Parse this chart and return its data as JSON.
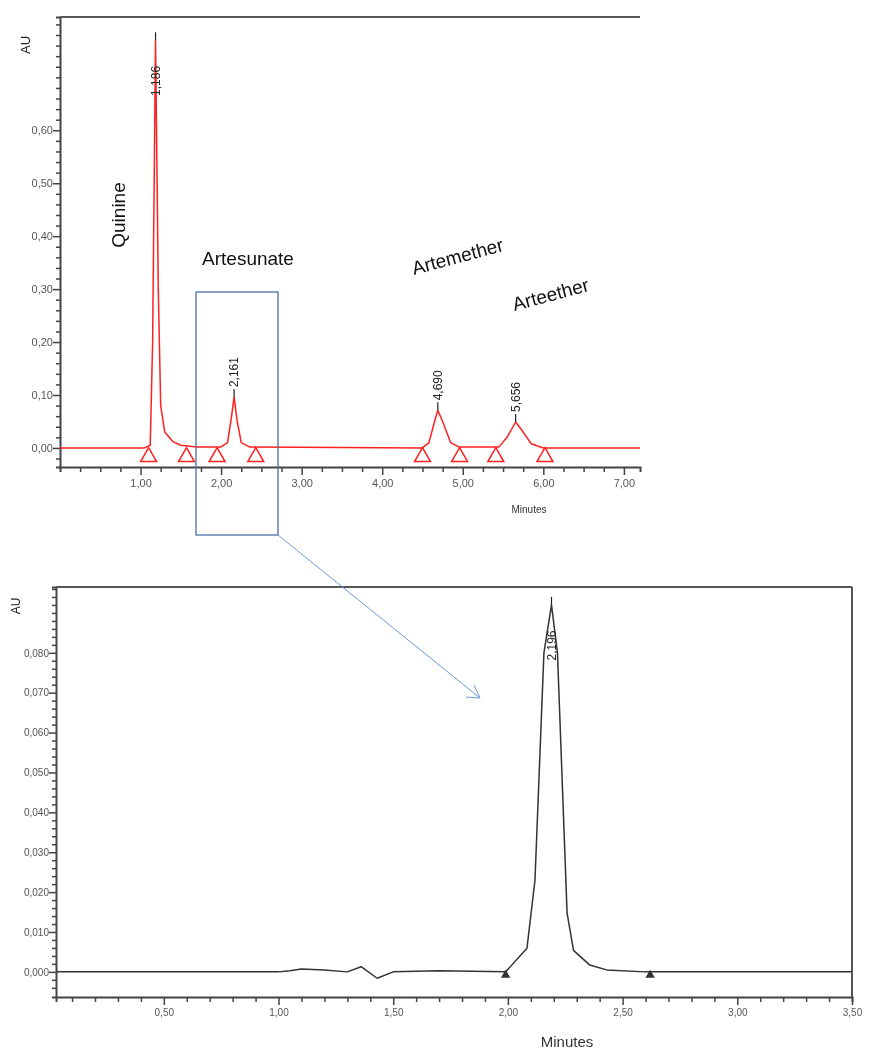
{
  "chart_data": [
    {
      "type": "line",
      "xlabel": "Minutes",
      "ylabel": "AU",
      "xlim": [
        0,
        7.2
      ],
      "ylim": [
        -0.036,
        0.814
      ],
      "xticks": [
        {
          "value": 0.25,
          "label": null
        },
        {
          "value": 0.5,
          "label": null
        },
        {
          "value": 0.75,
          "label": null
        },
        {
          "value": 1,
          "label": "1,00"
        },
        {
          "value": 1.25,
          "label": null
        },
        {
          "value": 1.5,
          "label": null
        },
        {
          "value": 1.75,
          "label": null
        },
        {
          "value": 2,
          "label": "2,00"
        },
        {
          "value": 2.25,
          "label": null
        },
        {
          "value": 2.5,
          "label": null
        },
        {
          "value": 2.75,
          "label": null
        },
        {
          "value": 3,
          "label": "3,00"
        },
        {
          "value": 3.25,
          "label": null
        },
        {
          "value": 3.5,
          "label": null
        },
        {
          "value": 3.75,
          "label": null
        },
        {
          "value": 4,
          "label": "4,00"
        },
        {
          "value": 4.25,
          "label": null
        },
        {
          "value": 4.5,
          "label": null
        },
        {
          "value": 4.75,
          "label": null
        },
        {
          "value": 5,
          "label": "5,00"
        },
        {
          "value": 5.25,
          "label": null
        },
        {
          "value": 5.5,
          "label": null
        },
        {
          "value": 5.75,
          "label": null
        },
        {
          "value": 6,
          "label": "6,00"
        },
        {
          "value": 6.25,
          "label": null
        },
        {
          "value": 6.5,
          "label": null
        },
        {
          "value": 6.75,
          "label": null
        },
        {
          "value": 7,
          "label": "7,00"
        }
      ],
      "yticks": [
        {
          "value": -0.02,
          "label": null
        },
        {
          "value": 0,
          "label": "0,00"
        },
        {
          "value": 0.02,
          "label": null
        },
        {
          "value": 0.04,
          "label": null
        },
        {
          "value": 0.06,
          "label": null
        },
        {
          "value": 0.08,
          "label": null
        },
        {
          "value": 0.1,
          "label": "0,10"
        },
        {
          "value": 0.12,
          "label": null
        },
        {
          "value": 0.14,
          "label": null
        },
        {
          "value": 0.16,
          "label": null
        },
        {
          "value": 0.18,
          "label": null
        },
        {
          "value": 0.2,
          "label": "0,20"
        },
        {
          "value": 0.22,
          "label": null
        },
        {
          "value": 0.24,
          "label": null
        },
        {
          "value": 0.26,
          "label": null
        },
        {
          "value": 0.28,
          "label": null
        },
        {
          "value": 0.3,
          "label": "0,30"
        },
        {
          "value": 0.32,
          "label": null
        },
        {
          "value": 0.34,
          "label": null
        },
        {
          "value": 0.36,
          "label": null
        },
        {
          "value": 0.38,
          "label": null
        },
        {
          "value": 0.4,
          "label": "0,40"
        },
        {
          "value": 0.42,
          "label": null
        },
        {
          "value": 0.44,
          "label": null
        },
        {
          "value": 0.46,
          "label": null
        },
        {
          "value": 0.48,
          "label": null
        },
        {
          "value": 0.5,
          "label": "0,50"
        },
        {
          "value": 0.52,
          "label": null
        },
        {
          "value": 0.54,
          "label": null
        },
        {
          "value": 0.56,
          "label": null
        },
        {
          "value": 0.58,
          "label": null
        },
        {
          "value": 0.6,
          "label": "0,60"
        },
        {
          "value": 0.62,
          "label": null
        },
        {
          "value": 0.64,
          "label": null
        },
        {
          "value": 0.66,
          "label": null
        },
        {
          "value": 0.68,
          "label": null
        },
        {
          "value": 0.7,
          "label": null
        },
        {
          "value": 0.72,
          "label": null
        },
        {
          "value": 0.74,
          "label": null
        },
        {
          "value": 0.76,
          "label": null
        },
        {
          "value": 0.78,
          "label": null
        },
        {
          "value": 0.8,
          "label": null
        }
      ],
      "series": [
        {
          "color": "#ff2020",
          "x": [
            0,
            1.05,
            1.12,
            1.15,
            1.186,
            1.22,
            1.25,
            1.3,
            1.4,
            1.5,
            1.7,
            2.0,
            2.08,
            2.13,
            2.161,
            2.2,
            2.25,
            2.35,
            4.5,
            4.58,
            4.65,
            4.69,
            4.75,
            4.85,
            4.95,
            5.45,
            5.55,
            5.656,
            5.75,
            5.85,
            6.0,
            7.2
          ],
          "values": [
            0,
            0,
            0.005,
            0.2,
            0.77,
            0.3,
            0.08,
            0.03,
            0.012,
            0.005,
            0.002,
            0.002,
            0.01,
            0.06,
            0.096,
            0.05,
            0.01,
            0.002,
            0,
            0.01,
            0.05,
            0.071,
            0.05,
            0.01,
            0.002,
            0.002,
            0.02,
            0.049,
            0.03,
            0.008,
            0,
            0
          ]
        },
        {
          "type": "scatter",
          "marker": "triangle",
          "color": "#ff2020",
          "x": [
            1.1,
            1.57,
            1.95,
            2.43,
            4.5,
            4.96,
            5.41,
            6.02
          ],
          "values": [
            -0.017,
            -0.017,
            -0.017,
            -0.017,
            -0.017,
            -0.017,
            -0.017,
            -0.017
          ]
        }
      ],
      "annotations": [
        "Quinine",
        "Artesunate",
        "Artemether",
        "Arteether",
        {
          "text": "1,186",
          "x": 1.186,
          "y": 0.77
        },
        {
          "text": "2,161",
          "x": 2.161,
          "y": 0.096
        },
        {
          "text": "4,690",
          "x": 4.69,
          "y": 0.071
        },
        {
          "text": "5,656",
          "x": 5.656,
          "y": 0.049
        }
      ]
    },
    {
      "type": "line",
      "xlabel": "Minutes",
      "ylabel": "AU",
      "xlim": [
        0.03,
        3.5
      ],
      "ylim": [
        -0.0063,
        0.0965
      ],
      "xticks": [
        {
          "value": 0.1,
          "label": null
        },
        {
          "value": 0.2,
          "label": null
        },
        {
          "value": 0.3,
          "label": null
        },
        {
          "value": 0.4,
          "label": null
        },
        {
          "value": 0.5,
          "label": "0,50"
        },
        {
          "value": 0.6,
          "label": null
        },
        {
          "value": 0.7,
          "label": null
        },
        {
          "value": 0.8,
          "label": null
        },
        {
          "value": 0.9,
          "label": null
        },
        {
          "value": 1,
          "label": "1,00"
        },
        {
          "value": 1.1,
          "label": null
        },
        {
          "value": 1.2,
          "label": null
        },
        {
          "value": 1.3,
          "label": null
        },
        {
          "value": 1.4,
          "label": null
        },
        {
          "value": 1.5,
          "label": "1,50"
        },
        {
          "value": 1.6,
          "label": null
        },
        {
          "value": 1.7,
          "label": null
        },
        {
          "value": 1.8,
          "label": null
        },
        {
          "value": 1.9,
          "label": null
        },
        {
          "value": 2,
          "label": "2,00"
        },
        {
          "value": 2.1,
          "label": null
        },
        {
          "value": 2.2,
          "label": null
        },
        {
          "value": 2.3,
          "label": null
        },
        {
          "value": 2.4,
          "label": null
        },
        {
          "value": 2.5,
          "label": "2,50"
        },
        {
          "value": 2.6,
          "label": null
        },
        {
          "value": 2.7,
          "label": null
        },
        {
          "value": 2.8,
          "label": null
        },
        {
          "value": 2.9,
          "label": null
        },
        {
          "value": 3,
          "label": "3,00"
        },
        {
          "value": 3.1,
          "label": null
        },
        {
          "value": 3.2,
          "label": null
        },
        {
          "value": 3.3,
          "label": null
        },
        {
          "value": 3.4,
          "label": null
        },
        {
          "value": 3.5,
          "label": "3,50"
        }
      ],
      "yticks": [
        {
          "value": -0.004,
          "label": null
        },
        {
          "value": -0.002,
          "label": null
        },
        {
          "value": 0,
          "label": "0,000"
        },
        {
          "value": 0.002,
          "label": null
        },
        {
          "value": 0.004,
          "label": null
        },
        {
          "value": 0.006,
          "label": null
        },
        {
          "value": 0.008,
          "label": null
        },
        {
          "value": 0.01,
          "label": "0,010"
        },
        {
          "value": 0.012,
          "label": null
        },
        {
          "value": 0.014,
          "label": null
        },
        {
          "value": 0.016,
          "label": null
        },
        {
          "value": 0.018,
          "label": null
        },
        {
          "value": 0.02,
          "label": "0,020"
        },
        {
          "value": 0.022,
          "label": null
        },
        {
          "value": 0.024,
          "label": null
        },
        {
          "value": 0.026,
          "label": null
        },
        {
          "value": 0.028,
          "label": null
        },
        {
          "value": 0.03,
          "label": "0,030"
        },
        {
          "value": 0.032,
          "label": null
        },
        {
          "value": 0.034,
          "label": null
        },
        {
          "value": 0.036,
          "label": null
        },
        {
          "value": 0.038,
          "label": null
        },
        {
          "value": 0.04,
          "label": "0,040"
        },
        {
          "value": 0.042,
          "label": null
        },
        {
          "value": 0.044,
          "label": null
        },
        {
          "value": 0.046,
          "label": null
        },
        {
          "value": 0.048,
          "label": null
        },
        {
          "value": 0.05,
          "label": "0,050"
        },
        {
          "value": 0.052,
          "label": null
        },
        {
          "value": 0.054,
          "label": null
        },
        {
          "value": 0.056,
          "label": null
        },
        {
          "value": 0.058,
          "label": null
        },
        {
          "value": 0.06,
          "label": "0,060"
        },
        {
          "value": 0.062,
          "label": null
        },
        {
          "value": 0.064,
          "label": null
        },
        {
          "value": 0.066,
          "label": null
        },
        {
          "value": 0.068,
          "label": null
        },
        {
          "value": 0.07,
          "label": "0,070"
        },
        {
          "value": 0.072,
          "label": null
        },
        {
          "value": 0.074,
          "label": null
        },
        {
          "value": 0.076,
          "label": null
        },
        {
          "value": 0.078,
          "label": null
        },
        {
          "value": 0.08,
          "label": "0,080"
        },
        {
          "value": 0.082,
          "label": null
        },
        {
          "value": 0.084,
          "label": null
        },
        {
          "value": 0.086,
          "label": null
        },
        {
          "value": 0.088,
          "label": null
        },
        {
          "value": 0.09,
          "label": null
        },
        {
          "value": 0.092,
          "label": null
        },
        {
          "value": 0.094,
          "label": null
        },
        {
          "value": 0.096,
          "label": null
        }
      ],
      "series": [
        {
          "color": "#333333",
          "x": [
            0.03,
            0.5,
            1.0,
            1.05,
            1.1,
            1.2,
            1.3,
            1.36,
            1.43,
            1.5,
            1.7,
            1.99,
            2.083,
            2.118,
            2.157,
            2.19,
            2.216,
            2.258,
            2.286,
            2.357,
            2.43,
            2.6,
            3.5
          ],
          "values": [
            0,
            0,
            0,
            0.0003,
            0.0007,
            0.0005,
            0,
            0.0013,
            -0.0016,
            0,
            0.0003,
            0,
            0.0059,
            0.023,
            0.08,
            0.092,
            0.08,
            0.0147,
            0.0054,
            0.0017,
            0.0005,
            0,
            0
          ]
        },
        {
          "type": "scatter",
          "marker": "triangle",
          "color": "#333333",
          "x": [
            1.99,
            2.62
          ],
          "values": [
            -0.0008,
            -0.0008
          ]
        }
      ],
      "annotations": [
        {
          "text": "2,196",
          "x": 2.19,
          "y": 0.092
        }
      ]
    }
  ]
}
